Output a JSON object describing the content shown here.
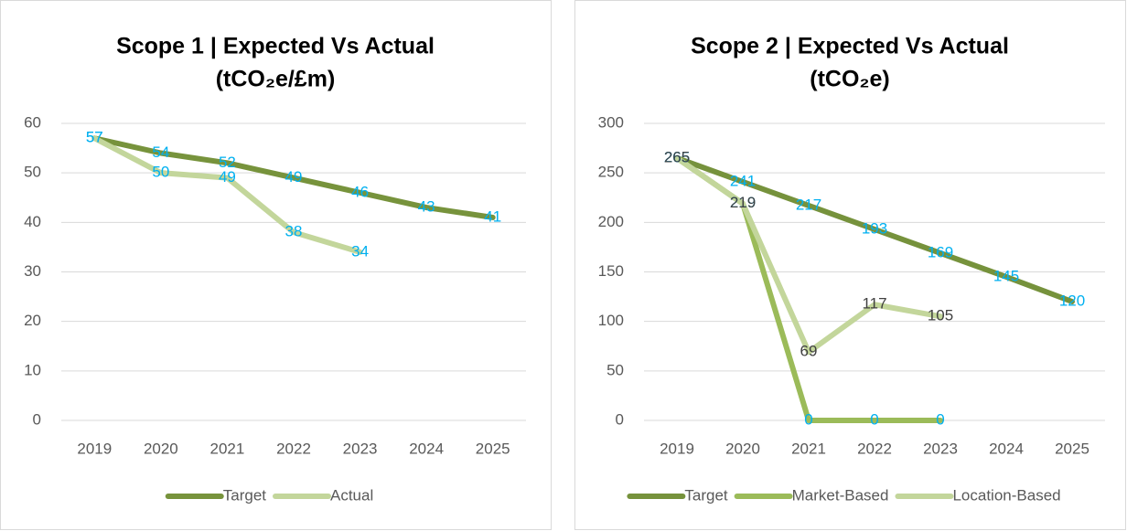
{
  "chart_data": [
    {
      "type": "line",
      "title": [
        "Scope 1 | Expected Vs Actual",
        "(tCO₂e/£m)"
      ],
      "categories": [
        "2019",
        "2020",
        "2021",
        "2022",
        "2023",
        "2024",
        "2025"
      ],
      "series": [
        {
          "name": "Target",
          "color": "#77933c",
          "label_color": "#00b0f0",
          "values": [
            57,
            54,
            52,
            49,
            46,
            43,
            41
          ]
        },
        {
          "name": "Actual",
          "color": "#c3d69b",
          "label_color": "#00b0f0",
          "values": [
            57,
            50,
            49,
            38,
            34,
            null,
            null
          ]
        }
      ],
      "ylim": [
        0,
        60
      ],
      "yticks": [
        0,
        10,
        20,
        30,
        40,
        50,
        60
      ],
      "grid": true,
      "legend": "bottom"
    },
    {
      "type": "line",
      "title": [
        "Scope 2 | Expected Vs Actual",
        "(tCO₂e)"
      ],
      "categories": [
        "2019",
        "2020",
        "2021",
        "2022",
        "2023",
        "2024",
        "2025"
      ],
      "series": [
        {
          "name": "Target",
          "color": "#76923c",
          "label_color": "#00b0f0",
          "values": [
            265,
            241,
            217,
            193,
            169,
            145,
            120
          ]
        },
        {
          "name": "Market-Based",
          "color": "#9bbb59",
          "label_color": "#00b0f0",
          "values": [
            265,
            219,
            0,
            0,
            0,
            null,
            null
          ]
        },
        {
          "name": "Location-Based",
          "color": "#c3d69b",
          "label_color": "#404040",
          "values": [
            265,
            219,
            69,
            117,
            105,
            null,
            null
          ]
        }
      ],
      "ylim": [
        0,
        300
      ],
      "yticks": [
        0,
        50,
        100,
        150,
        200,
        250,
        300
      ],
      "grid": true,
      "legend": "bottom"
    }
  ]
}
